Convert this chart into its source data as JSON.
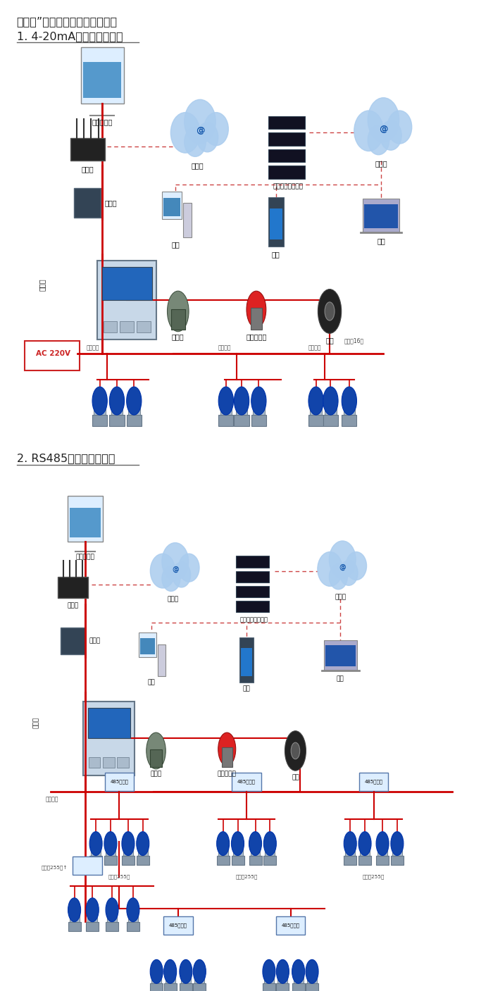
{
  "title1": "机气猫”系列带显示固定式检测仪",
  "section1": "1. 4-20mA信号连接系统图",
  "section2": "2. RS485信号连接系统图",
  "bg_color": "#ffffff",
  "text_color": "#222222",
  "title_fontsize": 13,
  "section_fontsize": 13,
  "fig_width": 7.0,
  "fig_height": 14.07,
  "dpi": 100,
  "ac_label": "AC 220V",
  "red_line_color": "#cc0000",
  "dashed_line_color": "#cc4444"
}
